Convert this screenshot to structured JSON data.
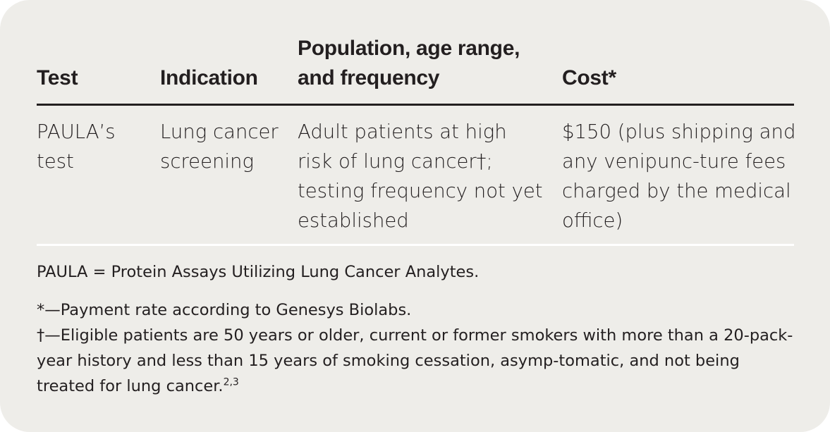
{
  "table": {
    "headers": [
      "Test",
      "Indication",
      "Population, age range, and frequency",
      "Cost*"
    ],
    "rows": [
      [
        "PAULA’s test",
        "Lung cancer screening",
        "Adult patients at high risk of lung cancer†; testing frequency not yet established",
        "$150 (plus shipping and any venipunc-ture fees charged by the medical office)"
      ]
    ]
  },
  "footnotes": {
    "abbreviation": "PAULA = Protein Assays Utilizing Lung Cancer Analytes.",
    "star": "*—Payment rate according to Genesys Biolabs.",
    "dagger": "†—Eligible patients are 50 years or older, current or former smokers with more than a 20-pack-year history and less than 15 years of smoking cessation, asymp-tomatic, and not being treated for lung cancer.",
    "dagger_refs": "2,3"
  }
}
